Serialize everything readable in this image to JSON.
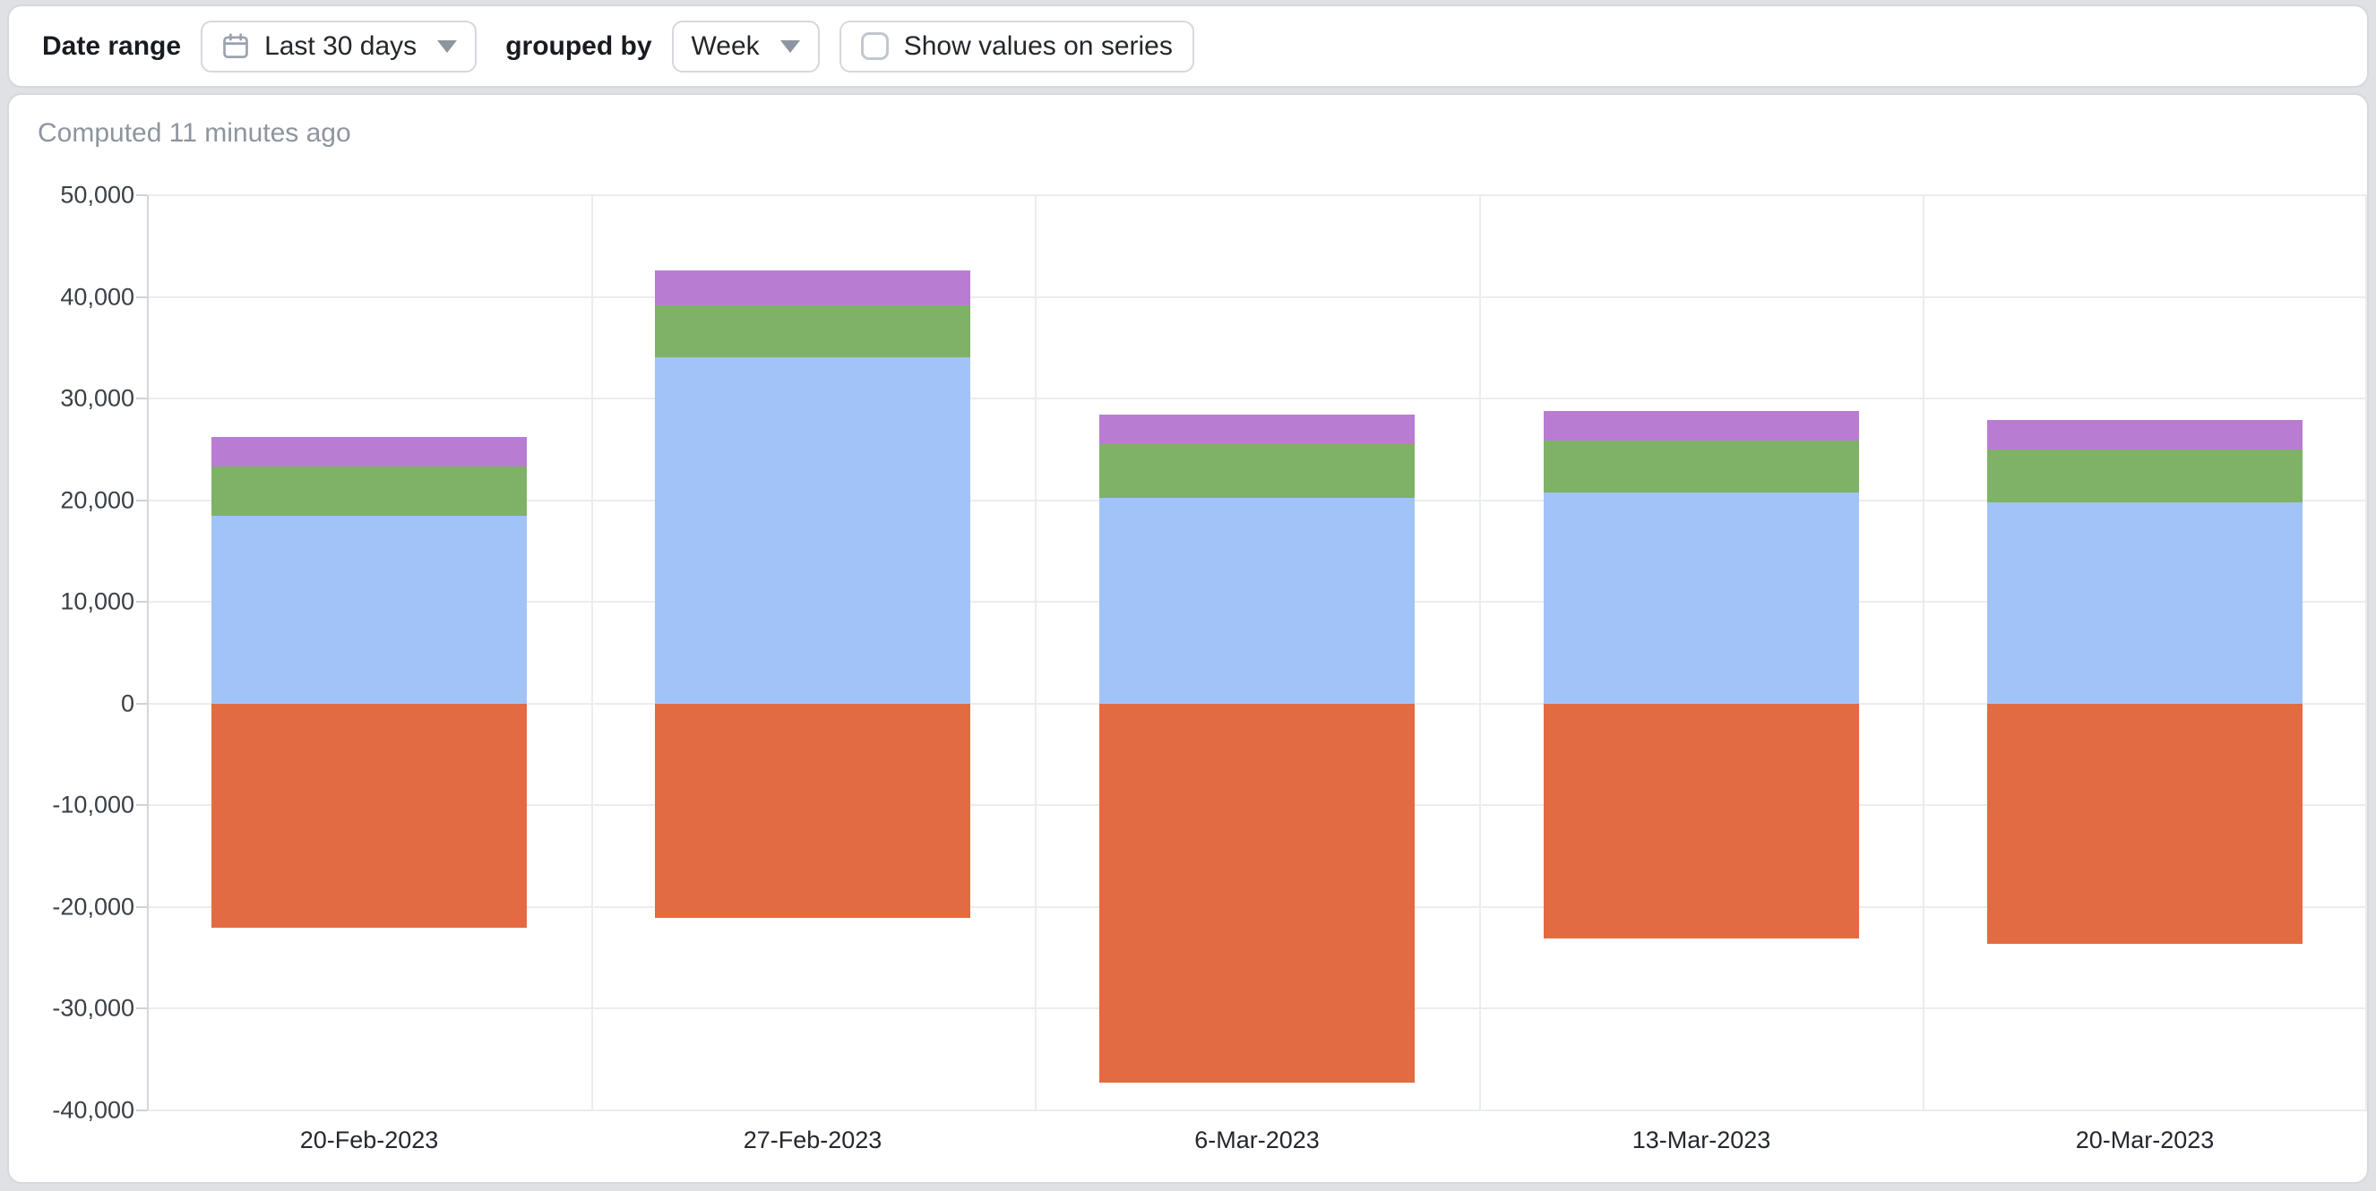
{
  "toolbar": {
    "date_range_label": "Date range",
    "date_range_value": "Last 30 days",
    "grouped_by_label": "grouped by",
    "grouped_by_value": "Week",
    "show_values_label": "Show values on series",
    "show_values_checked": false
  },
  "status": {
    "computed_text": "Computed 11 minutes ago"
  },
  "chart_data": {
    "type": "bar",
    "stacked": true,
    "title": "",
    "legend": "none",
    "grid": true,
    "categories": [
      "20-Feb-2023",
      "27-Feb-2023",
      "6-Mar-2023",
      "13-Mar-2023",
      "20-Mar-2023"
    ],
    "series": [
      {
        "name": "series-1-blue",
        "color": "#a2c3f7",
        "values": [
          18500,
          34100,
          20200,
          20800,
          19800
        ]
      },
      {
        "name": "series-2-green",
        "color": "#7fb266",
        "values": [
          4800,
          5100,
          5300,
          5100,
          5200
        ]
      },
      {
        "name": "series-3-purple",
        "color": "#b87dd2",
        "values": [
          2900,
          3400,
          2900,
          2900,
          2900
        ]
      },
      {
        "name": "series-4-orange",
        "color": "#e36b42",
        "values": [
          -22000,
          -21100,
          -37300,
          -23100,
          -23600
        ]
      }
    ],
    "ylim": [
      -40000,
      50000
    ],
    "y_tick_step": 10000,
    "y_tick_labels": [
      "50,000",
      "40,000",
      "30,000",
      "20,000",
      "10,000",
      "0",
      "-10,000",
      "-20,000",
      "-30,000",
      "-40,000"
    ],
    "xlabel": "",
    "ylabel": ""
  },
  "colors": {
    "page_bg": "#dfe1e4",
    "card_border": "#d5d8dc",
    "gridline": "#eaecee",
    "axis_line": "#d3d6da",
    "tick_text": "#3a4047",
    "muted_text": "#8d949e"
  }
}
